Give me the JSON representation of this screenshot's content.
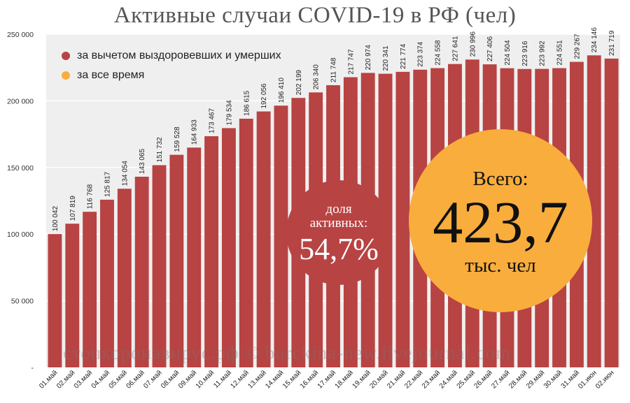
{
  "chart_data": {
    "type": "bar",
    "title": "Активные случаи COVID-19 в РФ (чел)",
    "categories": [
      "01.май",
      "02.май",
      "03.май",
      "04.май",
      "05.май",
      "06.май",
      "07.май",
      "08.май",
      "09.май",
      "10.май",
      "11.май",
      "12.май",
      "13.май",
      "14.май",
      "15.май",
      "16.май",
      "17.май",
      "18.май",
      "19.май",
      "20.май",
      "21.май",
      "22.май",
      "23.май",
      "24.май",
      "25.май",
      "26.май",
      "27.май",
      "28.май",
      "29.май",
      "30.май",
      "31.май",
      "01.июн",
      "02.июн"
    ],
    "series": [
      {
        "name": "за вычетом выздоровевших и умерших",
        "color": "#b84343",
        "values": [
          100042,
          107819,
          116768,
          125817,
          134054,
          143065,
          151732,
          159528,
          164933,
          173467,
          179534,
          186615,
          192056,
          196410,
          202199,
          206340,
          211748,
          217747,
          220974,
          220341,
          221774,
          223374,
          224558,
          227641,
          230996,
          227406,
          224504,
          223916,
          223992,
          224551,
          229267,
          234146,
          231719
        ],
        "labels": [
          "100 042",
          "107 819",
          "116 768",
          "125 817",
          "134 054",
          "143 065",
          "151 732",
          "159 528",
          "164 933",
          "173 467",
          "179 534",
          "186 615",
          "192 056",
          "196 410",
          "202 199",
          "206 340",
          "211 748",
          "217 747",
          "220 974",
          "220 341",
          "221 774",
          "223 374",
          "224 558",
          "227 641",
          "230 996",
          "227 406",
          "224 504",
          "223 916",
          "223 992",
          "224 551",
          "229 267",
          "234 146",
          "231 719"
        ]
      }
    ],
    "yticks": [
      {
        "value": 0,
        "label": "-"
      },
      {
        "value": 50000,
        "label": "50 000"
      },
      {
        "value": 100000,
        "label": "100 000"
      },
      {
        "value": 150000,
        "label": "150 000"
      },
      {
        "value": 200000,
        "label": "200 000"
      },
      {
        "value": 250000,
        "label": "250 000"
      }
    ],
    "ylim": [
      0,
      250000
    ],
    "grid": true,
    "plot_background": "#efefef"
  },
  "legend": {
    "items": [
      {
        "label": "за вычетом выздоровевших и умерших",
        "color": "#b84343"
      },
      {
        "label": "за все время",
        "color": "#f9ad3c"
      }
    ]
  },
  "share_badge": {
    "label_line1": "доля",
    "label_line2": "активных:",
    "value": "54,7%",
    "color": "#b84343"
  },
  "total_badge": {
    "label": "Всего:",
    "value": "423,7",
    "unit": "тыс. чел",
    "color": "#f9ad3c"
  },
  "watermark": "стопкоронавирус.рф © burckina-new.livejournal.com"
}
